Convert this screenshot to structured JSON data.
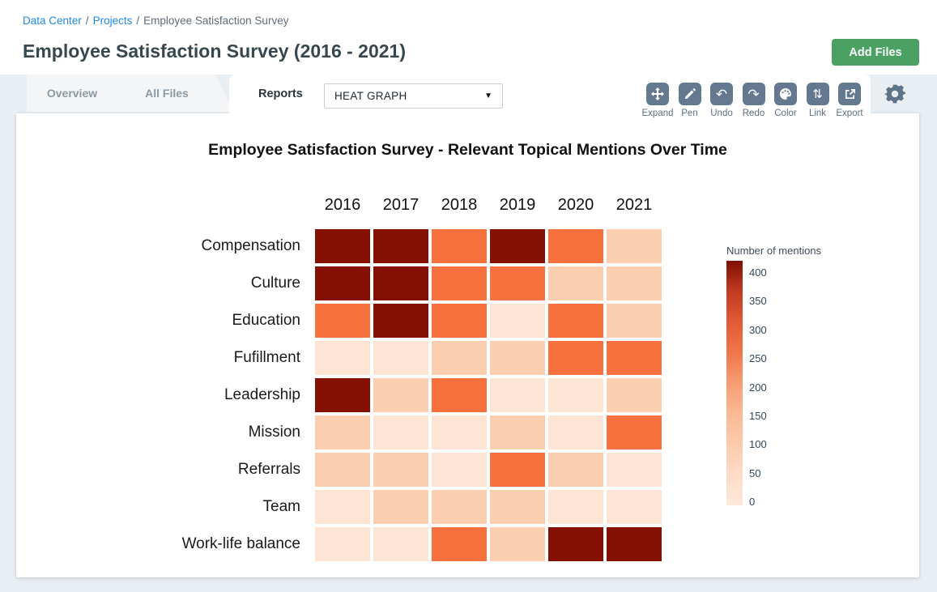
{
  "breadcrumb": {
    "separator": "/",
    "items": [
      {
        "label": "Data Center"
      },
      {
        "label": "Projects"
      },
      {
        "label": "Employee Satisfaction Survey"
      }
    ]
  },
  "header": {
    "title": "Employee Satisfaction Survey (2016 - 2021)",
    "add_files_label": "Add Files"
  },
  "tabs": [
    {
      "label": "Overview",
      "active": false
    },
    {
      "label": "All Files",
      "active": false
    },
    {
      "label": "Reports",
      "active": true
    }
  ],
  "report_selector": {
    "value": "HEAT GRAPH",
    "caret": "▼"
  },
  "toolbar": {
    "buttons": [
      {
        "name": "expand",
        "label": "Expand",
        "icon": "move-arrows-icon"
      },
      {
        "name": "pen",
        "label": "Pen",
        "icon": "pencil-icon"
      },
      {
        "name": "undo",
        "label": "Undo",
        "icon": "undo-arrow-icon",
        "glyph": "↶"
      },
      {
        "name": "redo",
        "label": "Redo",
        "icon": "redo-arrow-icon",
        "glyph": "↷"
      },
      {
        "name": "color",
        "label": "Color",
        "icon": "palette-icon"
      },
      {
        "name": "link",
        "label": "Link",
        "icon": "up-down-arrows-icon",
        "glyph": "⇅"
      },
      {
        "name": "export",
        "label": "Export",
        "icon": "export-box-icon"
      }
    ]
  },
  "colors": {
    "accent_green": "#4ba162",
    "toolbar_button": "#64788f",
    "link_blue": "#1e88e5",
    "page_bg": "#e9eef2"
  },
  "chart_data": {
    "type": "heatmap",
    "title": "Employee Satisfaction Survey - Relevant Topical Mentions Over Time",
    "x_labels": [
      "2016",
      "2017",
      "2018",
      "2019",
      "2020",
      "2021"
    ],
    "y_labels": [
      "Compensation",
      "Culture",
      "Education",
      "Fufillment",
      "Leadership",
      "Mission",
      "Referrals",
      "Team",
      "Work-life balance"
    ],
    "values": [
      [
        400,
        400,
        265,
        400,
        265,
        110
      ],
      [
        400,
        400,
        265,
        265,
        110,
        110
      ],
      [
        265,
        400,
        265,
        35,
        265,
        110
      ],
      [
        35,
        35,
        110,
        110,
        265,
        265
      ],
      [
        400,
        110,
        265,
        35,
        35,
        110
      ],
      [
        110,
        35,
        35,
        110,
        35,
        265
      ],
      [
        110,
        110,
        35,
        265,
        110,
        35
      ],
      [
        35,
        110,
        110,
        110,
        35,
        35
      ],
      [
        35,
        35,
        265,
        110,
        400,
        400
      ]
    ],
    "value_colors": {
      "400": "#841104",
      "265": "#F7713F",
      "110": "#FCCEB0",
      "35": "#FDE5D6"
    },
    "colorbar": {
      "label": "Number of mentions",
      "min": 0,
      "max": 400,
      "ticks": [
        400,
        350,
        300,
        250,
        200,
        150,
        100,
        50,
        0
      ],
      "gradient_top_to_bottom": [
        "#7F1004",
        "#C23A22",
        "#E25A36",
        "#F0764B",
        "#F79C73",
        "#FBB995",
        "#FCCBAC",
        "#FDDCC8",
        "#FEE9DB"
      ]
    },
    "grid": false,
    "legend_position": "right"
  }
}
